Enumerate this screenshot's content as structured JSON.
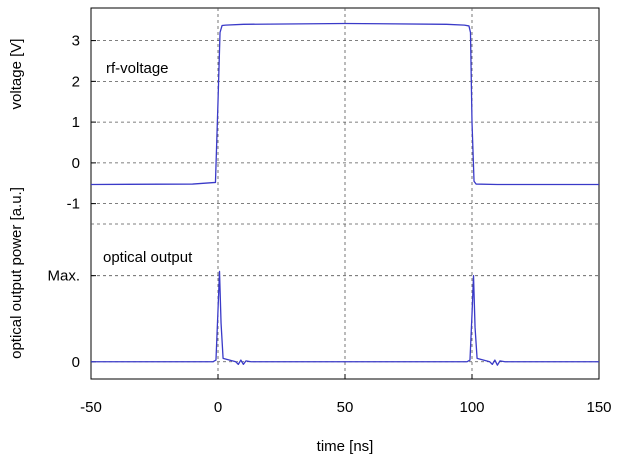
{
  "chart_data": {
    "type": "line",
    "xlabel": "time [ns]",
    "xlim": [
      -50,
      150
    ],
    "x_ticks": [
      -50,
      0,
      50,
      100,
      150
    ],
    "x_tick_labels": [
      "-50",
      "0",
      "50",
      "100",
      "150"
    ],
    "grid": true,
    "line_color": "#3a3ac8",
    "panels": [
      {
        "id": "voltage",
        "ylabel": "voltage [V]",
        "ylim": [
          -1.5,
          3.8
        ],
        "y_ticks": [
          -1,
          0,
          1,
          2,
          3
        ],
        "y_tick_labels": [
          "-1",
          "0",
          "1",
          "2",
          "3"
        ],
        "annotation": "rf-voltage",
        "series": [
          {
            "x": [
              -50,
              -10,
              -1,
              0,
              0.8,
              1.6,
              3,
              10,
              50,
              90,
              97,
              98.8,
              99.4,
              100,
              100.8,
              101.6,
              110,
              150
            ],
            "y": [
              -0.53,
              -0.52,
              -0.48,
              1.5,
              3.2,
              3.37,
              3.38,
              3.4,
              3.42,
              3.4,
              3.38,
              3.36,
              3.2,
              1.0,
              -0.45,
              -0.52,
              -0.53,
              -0.53
            ]
          }
        ]
      },
      {
        "id": "optical",
        "ylabel": "optical output power [a.u.]",
        "ylim": [
          -0.2,
          1.6
        ],
        "y_ticks": [
          0,
          1
        ],
        "y_tick_labels": [
          "0",
          "Max."
        ],
        "annotation": "optical output",
        "series": [
          {
            "x": [
              -50,
              -2,
              -0.8,
              0,
              0.6,
              1.2,
              2,
              7,
              8,
              9,
              10,
              11,
              13,
              50,
              98,
              99.2,
              100,
              100.6,
              101.2,
              102,
              107,
              108,
              109,
              110,
              111,
              113,
              150
            ],
            "y": [
              0,
              0,
              0.02,
              0.6,
              1.05,
              0.45,
              0.04,
              0,
              -0.03,
              0.02,
              -0.03,
              0.01,
              0,
              0,
              0,
              0.02,
              0.55,
              1.0,
              0.4,
              0.04,
              0,
              -0.03,
              0.02,
              -0.04,
              0.01,
              0,
              0
            ]
          }
        ]
      }
    ]
  }
}
